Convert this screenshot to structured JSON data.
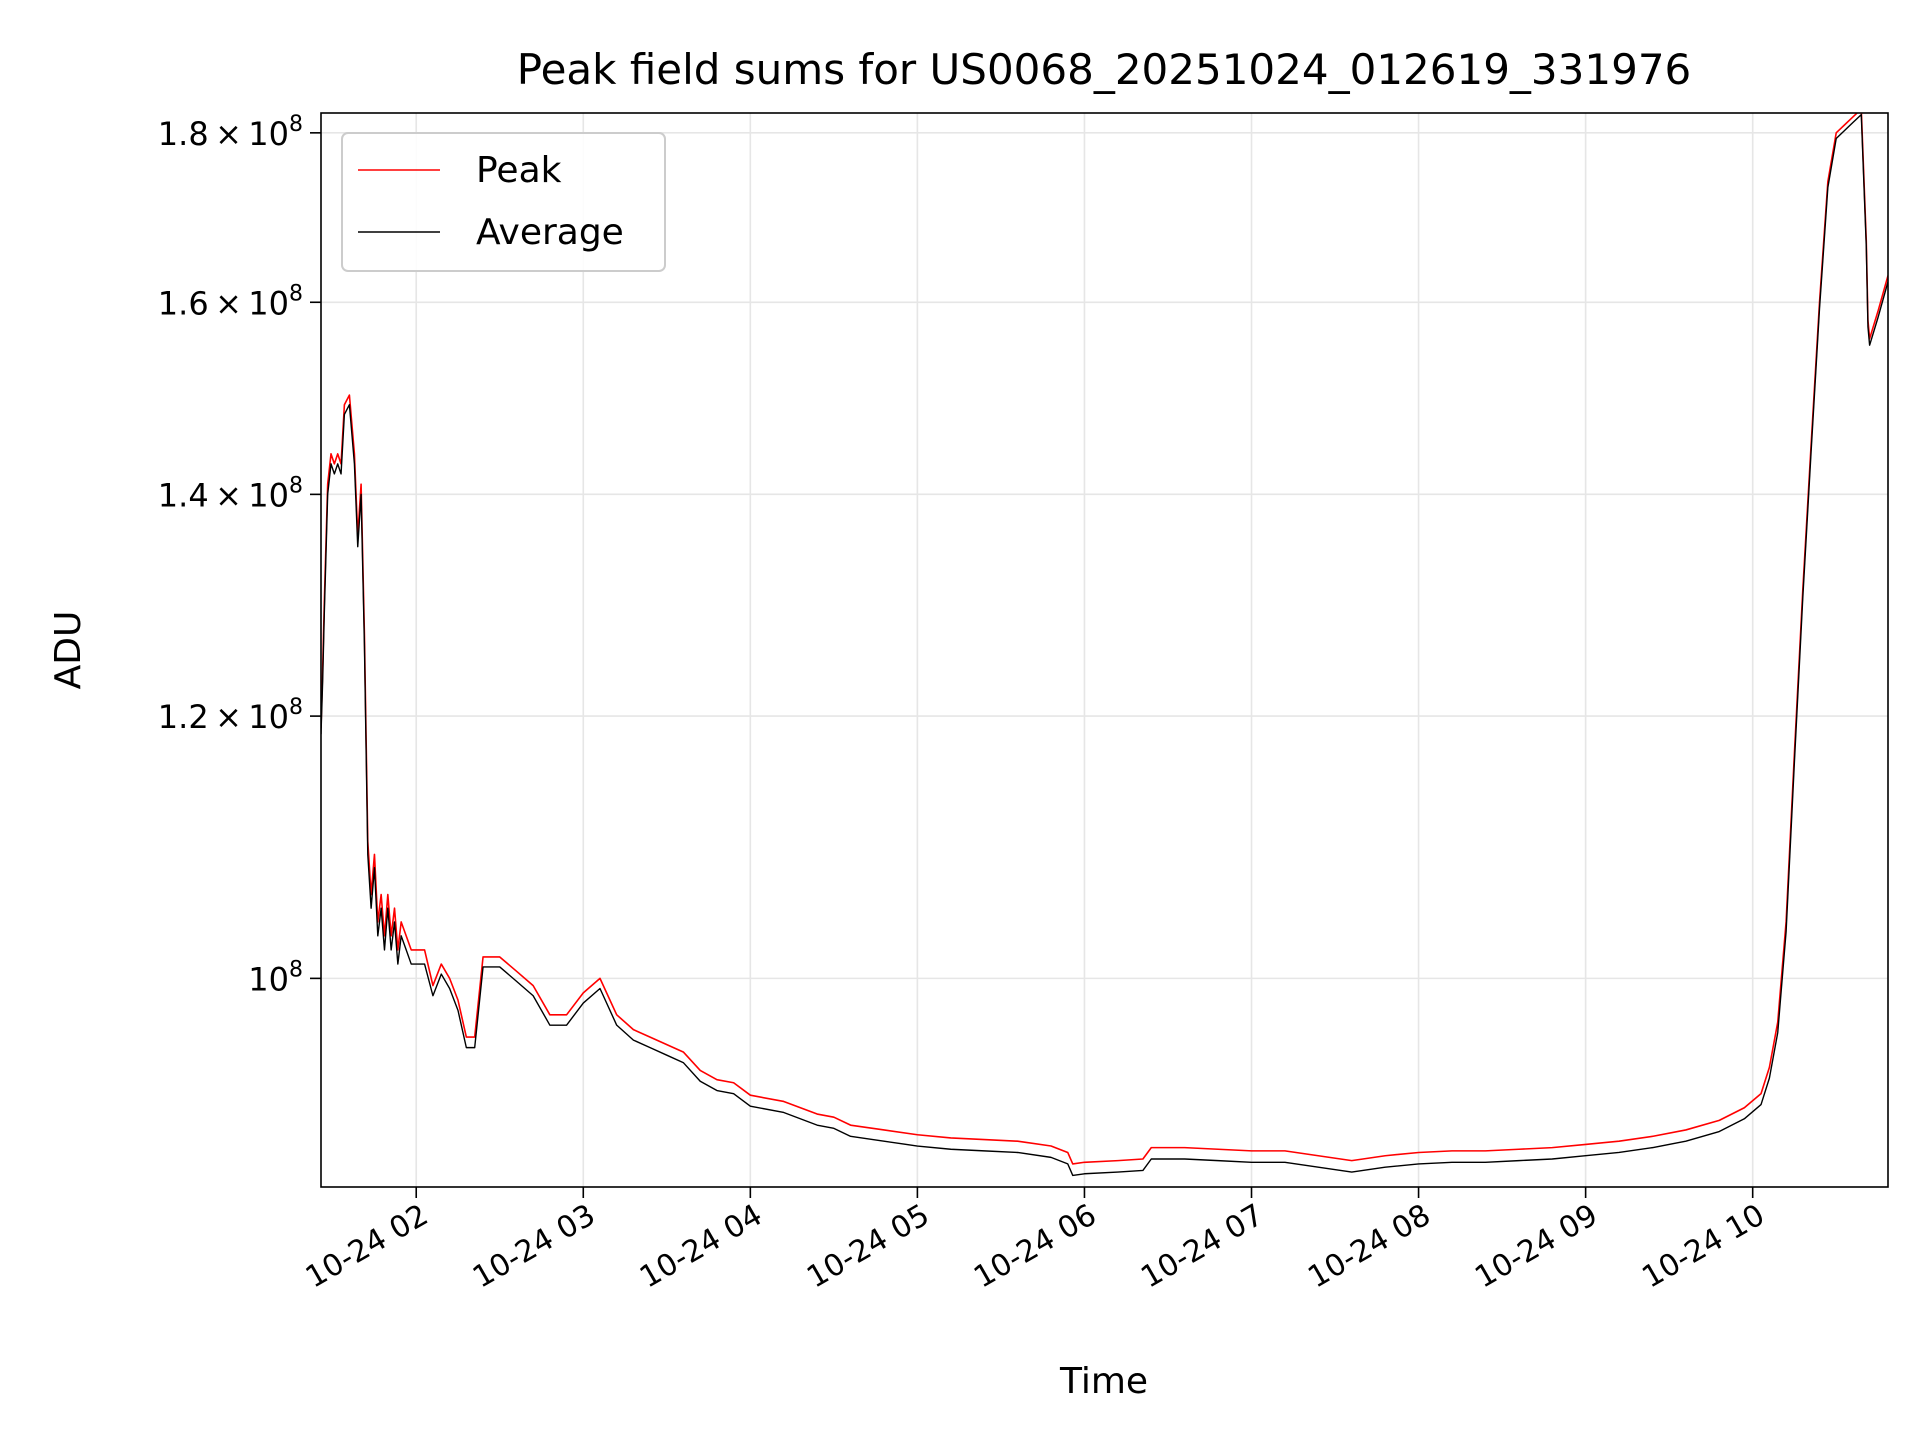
{
  "chart_data": {
    "type": "line",
    "title": "Peak field sums for US0068_20251024_012619_331976",
    "xlabel": "Time",
    "ylabel": "ADU",
    "yscale": "log",
    "xlim": [
      1.43,
      10.81
    ],
    "ylim": [
      86500000,
      182500000
    ],
    "grid": true,
    "legend_position": "top-left",
    "x_ticks": [
      {
        "value": 2,
        "label": "10-24 02"
      },
      {
        "value": 3,
        "label": "10-24 03"
      },
      {
        "value": 4,
        "label": "10-24 04"
      },
      {
        "value": 5,
        "label": "10-24 05"
      },
      {
        "value": 6,
        "label": "10-24 06"
      },
      {
        "value": 7,
        "label": "10-24 07"
      },
      {
        "value": 8,
        "label": "10-24 08"
      },
      {
        "value": 9,
        "label": "10-24 09"
      },
      {
        "value": 10,
        "label": "10-24 10"
      }
    ],
    "y_ticks": [
      {
        "value": 100000000,
        "mantissa": "",
        "exponent": "8"
      },
      {
        "value": 120000000,
        "mantissa": "1.2",
        "exponent": "8"
      },
      {
        "value": 140000000,
        "mantissa": "1.4",
        "exponent": "8"
      },
      {
        "value": 160000000,
        "mantissa": "1.6",
        "exponent": "8"
      },
      {
        "value": 180000000,
        "mantissa": "1.8",
        "exponent": "8"
      }
    ],
    "tick_base": "10",
    "series": [
      {
        "name": "Peak",
        "color": "#ff0000",
        "x": [
          1.43,
          1.44,
          1.45,
          1.47,
          1.49,
          1.51,
          1.53,
          1.55,
          1.57,
          1.6,
          1.63,
          1.65,
          1.67,
          1.69,
          1.71,
          1.73,
          1.75,
          1.77,
          1.79,
          1.81,
          1.83,
          1.85,
          1.87,
          1.89,
          1.91,
          1.94,
          1.97,
          2.0,
          2.05,
          2.1,
          2.15,
          2.2,
          2.25,
          2.3,
          2.35,
          2.4,
          2.43,
          2.47,
          2.5,
          2.6,
          2.7,
          2.8,
          2.9,
          3.0,
          3.1,
          3.2,
          3.3,
          3.4,
          3.5,
          3.6,
          3.7,
          3.8,
          3.9,
          4.0,
          4.2,
          4.4,
          4.5,
          4.6,
          4.8,
          5.0,
          5.2,
          5.4,
          5.6,
          5.8,
          5.9,
          5.93,
          6.0,
          6.2,
          6.35,
          6.4,
          6.6,
          6.8,
          7.0,
          7.2,
          7.4,
          7.6,
          7.8,
          8.0,
          8.2,
          8.4,
          8.6,
          8.8,
          9.0,
          9.2,
          9.4,
          9.6,
          9.8,
          9.95,
          10.05,
          10.1,
          10.15,
          10.2,
          10.25,
          10.3,
          10.35,
          10.4,
          10.45,
          10.5,
          10.55,
          10.6,
          10.65,
          10.68,
          10.69,
          10.7,
          10.75,
          10.81
        ],
        "y": [
          119000000,
          124000000,
          130000000,
          141000000,
          144000000,
          143000000,
          144000000,
          143000000,
          149000000,
          150000000,
          144000000,
          136000000,
          141000000,
          127000000,
          110000000,
          106000000,
          109000000,
          104000000,
          106000000,
          103000000,
          106000000,
          103000000,
          105000000,
          102000000,
          104000000,
          103000000,
          102000000,
          102000000,
          102000000,
          99500000,
          101000000,
          100000000,
          98500000,
          96000000,
          96000000,
          101500000,
          101500000,
          101500000,
          101500000,
          100500000,
          99500000,
          97500000,
          97500000,
          99000000,
          100000000,
          97500000,
          96500000,
          96000000,
          95500000,
          95000000,
          93800000,
          93200000,
          93000000,
          92200000,
          91800000,
          91000000,
          90800000,
          90300000,
          90000000,
          89700000,
          89500000,
          89400000,
          89300000,
          89000000,
          88600000,
          87900000,
          88000000,
          88100000,
          88200000,
          88900000,
          88900000,
          88800000,
          88700000,
          88700000,
          88400000,
          88100000,
          88400000,
          88600000,
          88700000,
          88700000,
          88800000,
          88900000,
          89100000,
          89300000,
          89600000,
          90000000,
          90600000,
          91400000,
          92300000,
          94000000,
          97000000,
          104000000,
          117000000,
          131000000,
          145000000,
          160000000,
          174000000,
          180000000,
          181000000,
          182000000,
          183000000,
          167000000,
          158000000,
          156000000,
          159000000,
          163000000
        ]
      },
      {
        "name": "Average",
        "color": "#000000",
        "x": [
          1.43,
          1.44,
          1.45,
          1.47,
          1.49,
          1.51,
          1.53,
          1.55,
          1.57,
          1.6,
          1.63,
          1.65,
          1.67,
          1.69,
          1.71,
          1.73,
          1.75,
          1.77,
          1.79,
          1.81,
          1.83,
          1.85,
          1.87,
          1.89,
          1.91,
          1.94,
          1.97,
          2.0,
          2.05,
          2.1,
          2.15,
          2.2,
          2.25,
          2.3,
          2.35,
          2.4,
          2.43,
          2.47,
          2.5,
          2.6,
          2.7,
          2.8,
          2.9,
          3.0,
          3.1,
          3.2,
          3.3,
          3.4,
          3.5,
          3.6,
          3.7,
          3.8,
          3.9,
          4.0,
          4.2,
          4.4,
          4.5,
          4.6,
          4.8,
          5.0,
          5.2,
          5.4,
          5.6,
          5.8,
          5.9,
          5.93,
          6.0,
          6.2,
          6.35,
          6.4,
          6.6,
          6.8,
          7.0,
          7.2,
          7.4,
          7.6,
          7.8,
          8.0,
          8.2,
          8.4,
          8.6,
          8.8,
          9.0,
          9.2,
          9.4,
          9.6,
          9.8,
          9.95,
          10.05,
          10.1,
          10.15,
          10.2,
          10.25,
          10.3,
          10.35,
          10.4,
          10.45,
          10.5,
          10.55,
          10.6,
          10.65,
          10.68,
          10.69,
          10.7,
          10.75,
          10.81
        ],
        "y": [
          118500000,
          123000000,
          129000000,
          140000000,
          143000000,
          142000000,
          143000000,
          142000000,
          148000000,
          149000000,
          143000000,
          135000000,
          140000000,
          126000000,
          109000000,
          105000000,
          108000000,
          103000000,
          105000000,
          102000000,
          105000000,
          102000000,
          104000000,
          101000000,
          103000000,
          102000000,
          101000000,
          101000000,
          101000000,
          98800000,
          100300000,
          99300000,
          97800000,
          95300000,
          95300000,
          100800000,
          100800000,
          100800000,
          100800000,
          99800000,
          98800000,
          96800000,
          96800000,
          98300000,
          99300000,
          96800000,
          95800000,
          95300000,
          94800000,
          94300000,
          93100000,
          92500000,
          92300000,
          91500000,
          91100000,
          90300000,
          90100000,
          89600000,
          89300000,
          89000000,
          88800000,
          88700000,
          88600000,
          88300000,
          87900000,
          87200000,
          87300000,
          87400000,
          87500000,
          88200000,
          88200000,
          88100000,
          88000000,
          88000000,
          87700000,
          87400000,
          87700000,
          87900000,
          88000000,
          88000000,
          88100000,
          88200000,
          88400000,
          88600000,
          88900000,
          89300000,
          89900000,
          90700000,
          91600000,
          93300000,
          96300000,
          103300000,
          116300000,
          130300000,
          144300000,
          159300000,
          173300000,
          179300000,
          180300000,
          181300000,
          182300000,
          166300000,
          157300000,
          155300000,
          158300000,
          162300000
        ]
      }
    ]
  }
}
